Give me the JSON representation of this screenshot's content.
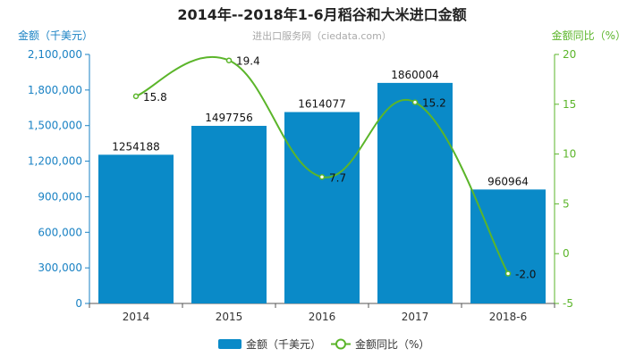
{
  "chart_data": {
    "type": "bar",
    "title": "2014年--2018年1-6月稻谷和大米进口金额",
    "watermark": "进出口服务网（ciedata.com）",
    "ylabel_left": "金额（千美元）",
    "ylabel_right": "金额同比（%）",
    "categories": [
      "2014",
      "2015",
      "2016",
      "2017",
      "2018-6"
    ],
    "series": [
      {
        "name": "金额（千美元）",
        "type": "bar",
        "axis": "left",
        "color": "#0a8ac8",
        "values": [
          1254188,
          1497756,
          1614077,
          1860004,
          960964
        ],
        "labels": [
          "1254188",
          "1497756",
          "1614077",
          "1860004",
          "960964"
        ]
      },
      {
        "name": "金额同比（%）",
        "type": "line",
        "axis": "right",
        "color": "#5bb52a",
        "values": [
          15.8,
          19.4,
          7.7,
          15.2,
          -2.0
        ],
        "labels": [
          "15.8",
          "19.4",
          "7.7",
          "15.2",
          "-2.0"
        ]
      }
    ],
    "ylim_left": [
      0,
      2100000
    ],
    "yticks_left": [
      "0",
      "300,000",
      "600,000",
      "900,000",
      "1,200,000",
      "1,500,000",
      "1,800,000",
      "2,100,000"
    ],
    "yticks_left_values": [
      0,
      300000,
      600000,
      900000,
      1200000,
      1500000,
      1800000,
      2100000
    ],
    "ylim_right": [
      -5,
      20
    ],
    "yticks_right": [
      "-5",
      "0",
      "5",
      "10",
      "15",
      "20"
    ],
    "yticks_right_values": [
      -5,
      0,
      5,
      10,
      15,
      20
    ],
    "grid": false,
    "legend_position": "bottom-center",
    "colors": {
      "left_axis": "#1a82c4",
      "right_axis": "#5bb52a"
    }
  }
}
